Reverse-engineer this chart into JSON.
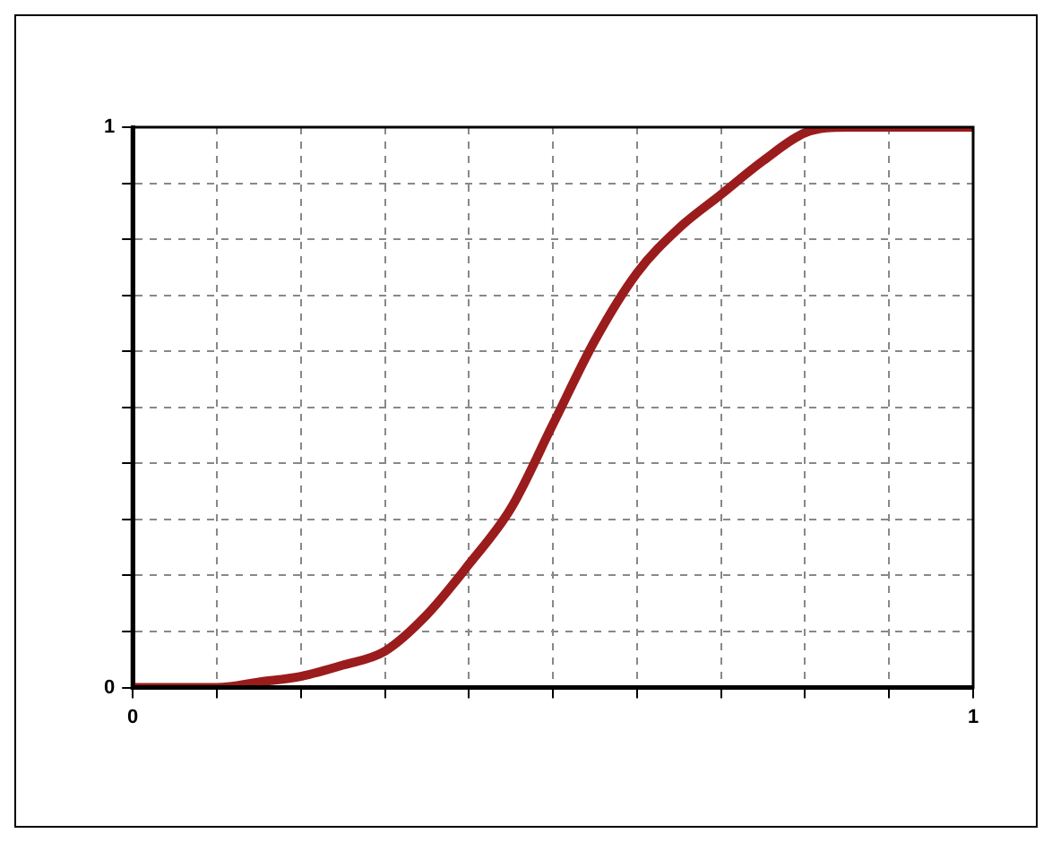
{
  "chart_data": {
    "type": "line",
    "x": [
      0,
      0.1,
      0.15,
      0.2,
      0.25,
      0.3,
      0.35,
      0.4,
      0.45,
      0.5,
      0.55,
      0.6,
      0.65,
      0.7,
      0.75,
      0.8,
      0.85,
      0.9,
      1
    ],
    "series": [
      {
        "color": "#9b1c1c",
        "values": [
          0,
          0,
          0.01,
          0.02,
          0.04,
          0.065,
          0.13,
          0.22,
          0.32,
          0.47,
          0.62,
          0.74,
          0.82,
          0.88,
          0.94,
          0.99,
          1,
          1,
          1
        ]
      }
    ],
    "xlim": [
      0,
      1
    ],
    "ylim": [
      0,
      1
    ],
    "xticks": [
      0,
      {
        "value": 0.1,
        "label": null
      },
      {
        "value": 0.2,
        "label": null
      },
      {
        "value": 0.3,
        "label": null
      },
      {
        "value": 0.4,
        "label": null
      },
      {
        "value": 0.5,
        "label": null
      },
      {
        "value": 0.6,
        "label": null
      },
      {
        "value": 0.7,
        "label": null
      },
      {
        "value": 0.8,
        "label": null
      },
      {
        "value": 0.9,
        "label": null
      },
      1
    ],
    "yticks": [
      0,
      {
        "value": 0.1,
        "label": null
      },
      {
        "value": 0.2,
        "label": null
      },
      {
        "value": 0.3,
        "label": null
      },
      {
        "value": 0.4,
        "label": null
      },
      {
        "value": 0.5,
        "label": null
      },
      {
        "value": 0.6,
        "label": null
      },
      {
        "value": 0.7,
        "label": null
      },
      {
        "value": 0.8,
        "label": null
      },
      {
        "value": 0.9,
        "label": null
      },
      1
    ],
    "grid": true,
    "legend": false,
    "marker": "none",
    "line_style": "solid"
  }
}
